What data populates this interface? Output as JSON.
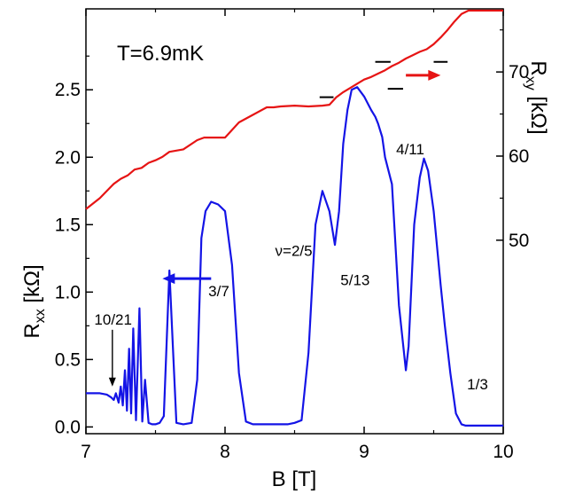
{
  "chart_data": {
    "type": "line",
    "title": "",
    "annotation_temperature": "T=6.9mK",
    "xlabel": "B [T]",
    "ylabel_left": "R",
    "ylabel_left_sub": "xx",
    "ylabel_left_unit": " [kΩ]",
    "ylabel_right": "R",
    "ylabel_right_sub": "xy",
    "ylabel_right_unit": " [kΩ]",
    "xlim": [
      7,
      10
    ],
    "ylim_left": [
      -0.05,
      3.1
    ],
    "ylim_right": [
      27.0,
      77.5
    ],
    "x_ticks": [
      7,
      8,
      9,
      10
    ],
    "x_tick_labels": [
      "7",
      "8",
      "9",
      "10"
    ],
    "y_left_ticks": [
      0.0,
      0.5,
      1.0,
      1.5,
      2.0,
      2.5
    ],
    "y_left_tick_labels": [
      "0.0",
      "0.5",
      "1.0",
      "1.5",
      "2.0",
      "2.5"
    ],
    "y_right_ticks": [
      50,
      60,
      70
    ],
    "y_right_tick_labels": [
      "50",
      "60",
      "70"
    ],
    "grid": false,
    "colors": {
      "rxx": "#1414e6",
      "rxy": "#e61414",
      "plateau": "#000000"
    },
    "series": [
      {
        "axis": "left",
        "x": [
          7.0,
          7.1,
          7.15,
          7.18,
          7.2,
          7.215,
          7.235,
          7.25,
          7.265,
          7.28,
          7.295,
          7.31,
          7.325,
          7.34,
          7.36,
          7.385,
          7.405,
          7.425,
          7.45,
          7.475,
          7.5,
          7.53,
          7.56,
          7.6,
          7.625,
          7.65,
          7.7,
          7.76,
          7.8,
          7.83,
          7.86,
          7.9,
          7.95,
          8.0,
          8.05,
          8.1,
          8.15,
          8.2,
          8.25,
          8.3,
          8.35,
          8.4,
          8.45,
          8.5,
          8.55,
          8.6,
          8.65,
          8.7,
          8.75,
          8.79,
          8.82,
          8.85,
          8.88,
          8.91,
          8.95,
          9.0,
          9.05,
          9.08,
          9.1,
          9.13,
          9.15,
          9.2,
          9.25,
          9.3,
          9.32,
          9.36,
          9.4,
          9.43,
          9.46,
          9.5,
          9.55,
          9.58,
          9.62,
          9.66,
          9.7,
          9.73,
          9.76,
          9.8,
          9.85,
          9.9,
          9.95,
          10.0
        ],
        "y": [
          0.25,
          0.25,
          0.24,
          0.22,
          0.2,
          0.25,
          0.18,
          0.3,
          0.16,
          0.42,
          0.12,
          0.58,
          0.1,
          0.73,
          0.05,
          0.88,
          0.04,
          0.35,
          0.03,
          0.02,
          0.02,
          0.03,
          0.08,
          1.16,
          0.6,
          0.03,
          0.02,
          0.03,
          0.35,
          1.4,
          1.6,
          1.67,
          1.65,
          1.6,
          1.2,
          0.4,
          0.04,
          0.02,
          0.02,
          0.02,
          0.02,
          0.02,
          0.02,
          0.03,
          0.05,
          0.55,
          1.5,
          1.75,
          1.6,
          1.35,
          1.6,
          2.1,
          2.35,
          2.5,
          2.52,
          2.45,
          2.35,
          2.3,
          2.25,
          2.15,
          2.0,
          1.8,
          0.9,
          0.42,
          0.6,
          1.5,
          1.85,
          1.99,
          1.9,
          1.6,
          1.05,
          0.75,
          0.4,
          0.1,
          0.02,
          0.01,
          0.01,
          0.01,
          0.01,
          0.01,
          0.01,
          0.01
        ]
      },
      {
        "axis": "right",
        "x": [
          7.0,
          7.1,
          7.2,
          7.25,
          7.3,
          7.35,
          7.4,
          7.45,
          7.5,
          7.55,
          7.6,
          7.7,
          7.8,
          7.85,
          7.95,
          8.0,
          8.1,
          8.2,
          8.3,
          8.35,
          8.4,
          8.5,
          8.6,
          8.7,
          8.75,
          8.8,
          8.85,
          8.9,
          8.95,
          9.0,
          9.05,
          9.1,
          9.15,
          9.2,
          9.25,
          9.3,
          9.35,
          9.4,
          9.45,
          9.5,
          9.55,
          9.6,
          9.65,
          9.7,
          9.75,
          9.8,
          9.85,
          9.9,
          9.95,
          10.0
        ],
        "y": [
          53.7,
          55.0,
          56.7,
          57.3,
          57.7,
          58.4,
          58.6,
          59.2,
          59.5,
          59.9,
          60.5,
          60.8,
          61.9,
          62.2,
          62.2,
          62.2,
          64.0,
          64.9,
          65.8,
          65.8,
          65.9,
          66.0,
          65.9,
          66.0,
          66.1,
          67.0,
          67.6,
          68.1,
          68.6,
          69.1,
          69.4,
          69.8,
          70.2,
          70.7,
          71.1,
          71.6,
          72.0,
          72.4,
          72.7,
          73.3,
          74.1,
          75.0,
          76.0,
          76.9,
          77.3,
          77.3,
          77.3,
          77.3,
          77.3,
          77.3
        ]
      }
    ],
    "plateau_lines": [
      {
        "x": [
          8.68,
          8.78
        ],
        "y": 67.0
      },
      {
        "x": [
          9.08,
          9.19
        ],
        "y": 71.2
      },
      {
        "x": [
          9.17,
          9.28
        ],
        "y": 68.0
      },
      {
        "x": [
          9.5,
          9.6
        ],
        "y": 71.2
      }
    ],
    "annotations": [
      {
        "text": "10/21",
        "x": 7.06,
        "y": 0.76,
        "arrow_to_y": 0.3,
        "arrow_x": 7.19
      },
      {
        "text": "3/7",
        "x": 7.88,
        "y": 0.97
      },
      {
        "text": "ν=2/5",
        "x": 8.36,
        "y": 1.27
      },
      {
        "text": "5/13",
        "x": 8.83,
        "y": 1.05
      },
      {
        "text": "4/11",
        "x": 9.23,
        "y": 2.02
      },
      {
        "text": "1/3",
        "x": 9.74,
        "y": 0.28
      }
    ],
    "axis_arrows": [
      {
        "direction": "left",
        "color": "rxx",
        "x_from": 7.9,
        "x_to": 7.55,
        "y": 1.1,
        "axis": "left"
      },
      {
        "direction": "right",
        "color": "rxy",
        "x_from": 9.3,
        "x_to": 9.55,
        "y": 69.6,
        "axis": "right"
      }
    ]
  }
}
